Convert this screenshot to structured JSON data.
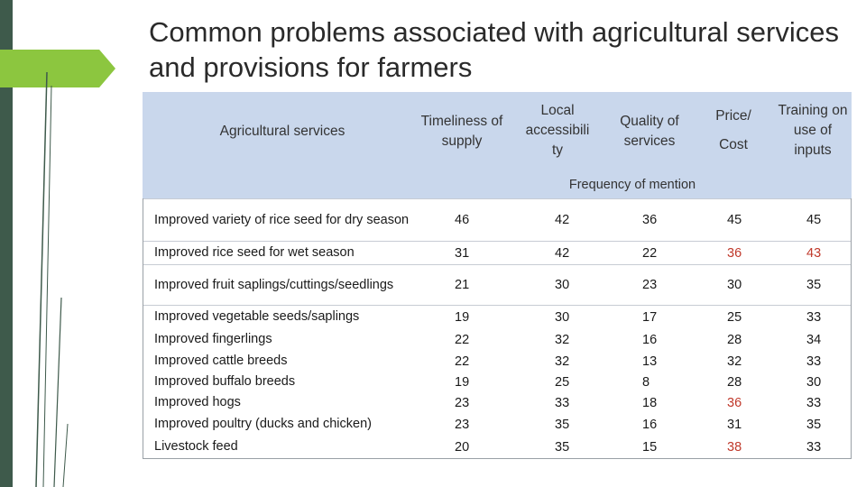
{
  "title": "Common problems associated with agricultural services and provisions for farmers",
  "header": {
    "service_col": "Agricultural services",
    "col1": "Timeliness of supply",
    "col2": "Local accessibili ty",
    "col3": "Quality of services",
    "col4_line1": "Price/",
    "col4_line2": "Cost",
    "col5": "Training on use of inputs",
    "subheader": "Frequency of mention"
  },
  "rows": [
    {
      "name": "Improved variety of rice seed for dry season",
      "values": [
        "46",
        "42",
        "36",
        "45",
        "45"
      ]
    },
    {
      "name": "Improved rice seed for wet season",
      "values": [
        "31",
        "42",
        "22",
        "36",
        "43"
      ]
    },
    {
      "name": "Improved fruit saplings/cuttings/seedlings",
      "values": [
        "21",
        "30",
        "23",
        "30",
        "35"
      ]
    },
    {
      "name": "Improved vegetable seeds/saplings",
      "values": [
        "19",
        "30",
        "17",
        "25",
        "33"
      ]
    },
    {
      "name": "Improved fingerlings",
      "values": [
        "22",
        "32",
        "16",
        "28",
        "34"
      ]
    },
    {
      "name": "Improved cattle breeds",
      "values": [
        "22",
        "32",
        "13",
        "32",
        "33"
      ]
    },
    {
      "name": "Improved buffalo breeds",
      "values": [
        "19",
        "25",
        "8",
        "28",
        "30"
      ]
    },
    {
      "name": "Improved hogs",
      "values": [
        "23",
        "33",
        "18",
        "36",
        "33"
      ]
    },
    {
      "name": "Improved poultry (ducks and chicken)",
      "values": [
        "23",
        "35",
        "16",
        "31",
        "35"
      ]
    },
    {
      "name": "Livestock feed",
      "values": [
        "20",
        "35",
        "15",
        "38",
        "33"
      ]
    }
  ],
  "colors": {
    "header_bg": "#c9d7ec",
    "accent_green": "#8cc63f",
    "sidebar": "#3e5a4b",
    "highlight": "#c0392b"
  }
}
